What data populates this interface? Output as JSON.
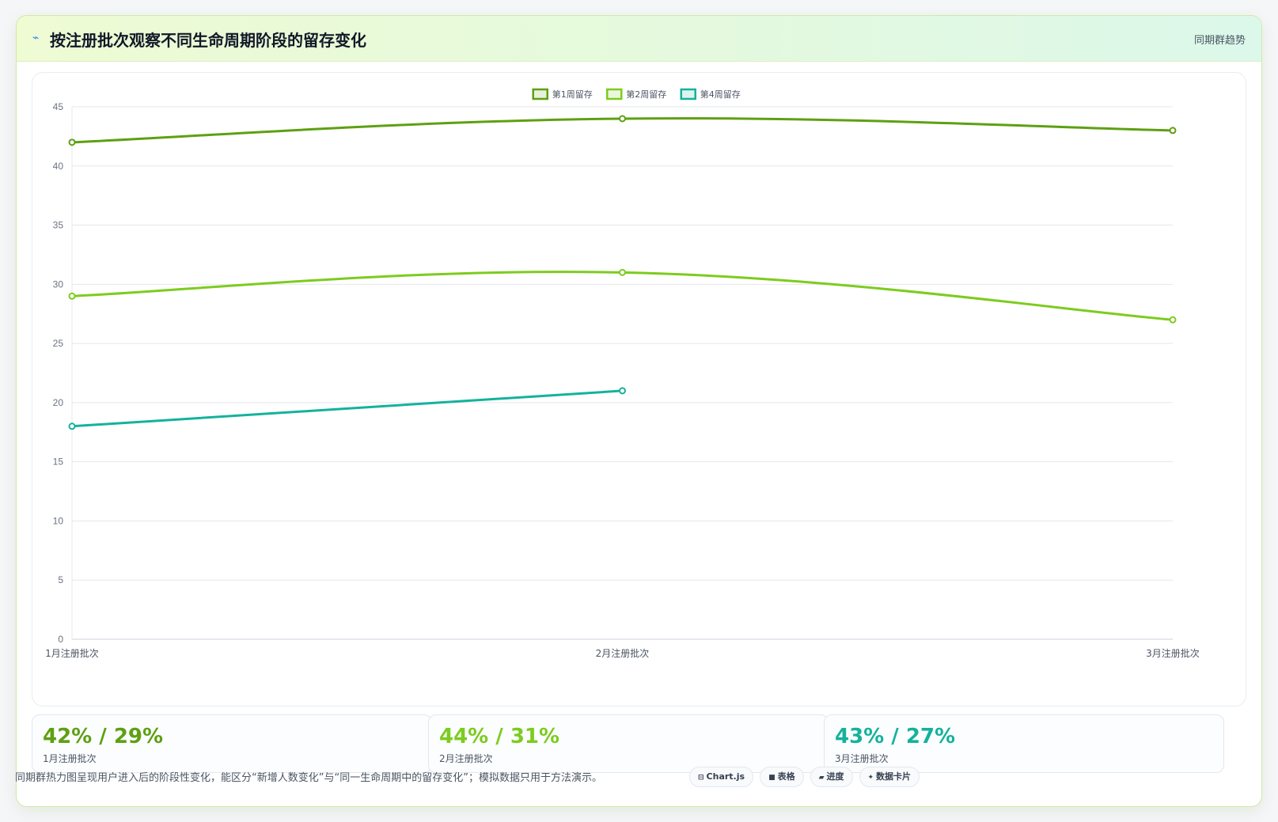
{
  "header": {
    "icon": "chart-line-icon",
    "title": "按注册批次观察不同生命周期阶段的留存变化",
    "tag": "同期群趋势"
  },
  "chart_data": {
    "type": "line",
    "categories": [
      "1月注册批次",
      "2月注册批次",
      "3月注册批次"
    ],
    "series": [
      {
        "name": "第1周留存",
        "values": [
          42,
          44,
          43
        ],
        "color": "#5ea012"
      },
      {
        "name": "第2周留存",
        "values": [
          29,
          31,
          27
        ],
        "color": "#7ccc1e"
      },
      {
        "name": "第4周留存",
        "values": [
          18,
          21,
          null
        ],
        "color": "#14b29c"
      }
    ],
    "ylim": [
      0,
      45
    ],
    "yticks": [
      0,
      5,
      10,
      15,
      20,
      25,
      30,
      35,
      40,
      45
    ],
    "legend": "top-center",
    "grid": true
  },
  "stats": [
    {
      "value": "42% / 29%",
      "label": "1月注册批次",
      "color": "#5ea012"
    },
    {
      "value": "44% / 31%",
      "label": "2月注册批次",
      "color": "#7ccc1e"
    },
    {
      "value": "43% / 27%",
      "label": "3月注册批次",
      "color": "#14b29c"
    }
  ],
  "footer": {
    "note": "同期群热力图呈现用户进入后的阶段性变化，能区分“新增人数变化”与“同一生命周期中的留存变化”；模拟数据只用于方法演示。",
    "chips": [
      {
        "icon": "database-icon",
        "glyph": "⊟",
        "label": "Chart.js"
      },
      {
        "icon": "table-icon",
        "glyph": "■",
        "label": "表格"
      },
      {
        "icon": "progress-icon",
        "glyph": "▰",
        "label": "进度"
      },
      {
        "icon": "sparkle-icon",
        "glyph": "✦",
        "label": "数据卡片"
      }
    ]
  }
}
